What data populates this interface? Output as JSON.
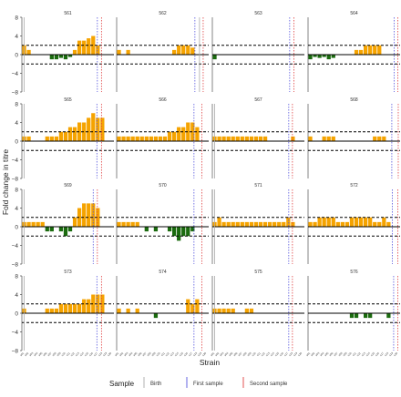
{
  "chart_data": {
    "type": "bar",
    "facet_layout": "4x4 grid",
    "xlabel": "Strain",
    "ylabel": "Fold change in titre",
    "ylim": [
      -8,
      8
    ],
    "yticks": [
      -8,
      -4,
      0,
      4,
      8
    ],
    "y_tick_labels": [
      "−8",
      "−4",
      "0",
      "4",
      "8"
    ],
    "reference_lines": {
      "solid": 0,
      "dashed": [
        -2,
        2
      ]
    },
    "categories": [
      "s01",
      "s02",
      "s03",
      "s04",
      "s05",
      "s06",
      "s07",
      "s08",
      "s09",
      "s10",
      "s11",
      "s12",
      "s13",
      "s14",
      "s15",
      "s16",
      "s17",
      "s18",
      "s19",
      "s20"
    ],
    "positive_color": "#F5A300",
    "negative_color": "#1B6B0F",
    "legend": {
      "title": "Sample",
      "placement": "bottom",
      "items": [
        {
          "label": "Birth",
          "color": "#AAAAAA"
        },
        {
          "label": "First sample",
          "color": "#5555DD"
        },
        {
          "label": "Second sample",
          "color": "#E04040"
        }
      ]
    },
    "panels": [
      {
        "id": "561",
        "values": [
          2,
          1,
          0,
          0,
          0,
          0,
          -1,
          -1,
          -0.7,
          -1,
          -0.5,
          1,
          3,
          3,
          3.5,
          4,
          2,
          0,
          0,
          0
        ],
        "birth_x": 0.5,
        "first_x": 16.4,
        "second_x": 17.3
      },
      {
        "id": "562",
        "values": [
          1,
          0,
          1,
          0,
          0,
          0,
          0,
          0,
          0,
          0,
          0,
          0,
          1,
          2,
          2,
          2,
          1.5,
          0,
          0,
          0
        ],
        "birth_x": 18,
        "first_x": 17,
        "second_x": 18.8
      },
      {
        "id": "563",
        "values": [
          -1,
          0,
          0,
          0,
          0,
          0,
          0,
          0,
          0,
          0,
          0,
          0,
          0,
          0,
          0,
          0,
          0,
          0,
          0,
          0
        ],
        "birth_x": null,
        "first_x": 16.8,
        "second_x": 17.7
      },
      {
        "id": "564",
        "values": [
          -1,
          -0.5,
          -0.7,
          -0.5,
          -1,
          -0.7,
          0,
          0,
          0,
          0,
          1,
          1,
          2,
          2,
          2,
          2,
          0,
          0,
          0,
          0
        ],
        "birth_x": null,
        "first_x": 18.7,
        "second_x": 19.5
      },
      {
        "id": "565",
        "values": [
          1,
          1,
          0,
          0,
          0,
          1,
          1,
          1,
          2,
          2,
          3,
          3,
          4,
          4,
          5,
          6,
          5,
          5,
          0,
          0
        ],
        "birth_x": 0.5,
        "first_x": 16.3,
        "second_x": 17.3
      },
      {
        "id": "566",
        "values": [
          1,
          1,
          1,
          1,
          1,
          1,
          1,
          1,
          1,
          1,
          1,
          2,
          2,
          3,
          3,
          4,
          4,
          3,
          0,
          0
        ],
        "birth_x": null,
        "first_x": 16.8,
        "second_x": 18.5
      },
      {
        "id": "567",
        "values": [
          1,
          1,
          1,
          1,
          1,
          1,
          1,
          1,
          1,
          1,
          1,
          1,
          0,
          0,
          0,
          0,
          0,
          1,
          0,
          0
        ],
        "birth_x": 0.5,
        "first_x": 16.6,
        "second_x": 17.4
      },
      {
        "id": "568",
        "values": [
          1,
          0,
          0,
          1,
          1,
          1,
          0,
          0,
          0,
          0,
          0,
          0,
          0,
          0,
          1,
          1,
          1,
          0,
          0,
          0
        ],
        "birth_x": null,
        "first_x": 18.2,
        "second_x": 19.6
      },
      {
        "id": "569",
        "values": [
          1,
          1,
          1,
          1,
          1,
          -1,
          -1,
          0,
          -1,
          -2,
          -1,
          2,
          4,
          5,
          5,
          5,
          4,
          0,
          0,
          0
        ],
        "birth_x": 0.5,
        "first_x": 15.5,
        "second_x": 16.4
      },
      {
        "id": "570",
        "values": [
          1,
          1,
          1,
          1,
          1,
          0,
          -1,
          0,
          -1,
          0,
          0,
          -1,
          -2,
          -3,
          -2,
          -2,
          -1,
          0,
          0,
          0
        ],
        "birth_x": null,
        "first_x": 16.8,
        "second_x": 18.5
      },
      {
        "id": "571",
        "values": [
          1,
          2,
          1,
          1,
          1,
          1,
          1,
          1,
          1,
          1,
          1,
          1,
          1,
          1,
          1,
          1,
          2,
          1,
          0,
          0
        ],
        "birth_x": 0.5,
        "first_x": 16.6,
        "second_x": 17.4
      },
      {
        "id": "572",
        "values": [
          1,
          1,
          2,
          2,
          2,
          2,
          1,
          1,
          1,
          2,
          2,
          2,
          2,
          2,
          1,
          1,
          2,
          1,
          0,
          0
        ],
        "birth_x": null,
        "first_x": 18.3,
        "second_x": 19.5
      },
      {
        "id": "573",
        "values": [
          1,
          0,
          0,
          0,
          0,
          1,
          1,
          1,
          2,
          2,
          2,
          2,
          2,
          3,
          3,
          4,
          4,
          4,
          0,
          0
        ],
        "birth_x": 0.5,
        "first_x": 16.3,
        "second_x": 17.3
      },
      {
        "id": "574",
        "values": [
          1,
          0,
          1,
          0,
          1,
          0,
          0,
          0,
          -1,
          0,
          0,
          0,
          0,
          0,
          0,
          3,
          2,
          3,
          0,
          0
        ],
        "birth_x": null,
        "first_x": 16.8,
        "second_x": 18.5
      },
      {
        "id": "575",
        "values": [
          1,
          1,
          1,
          1,
          1,
          0,
          0,
          1,
          1,
          0,
          0,
          0,
          0,
          0,
          0,
          0,
          0,
          0,
          0,
          0
        ],
        "birth_x": 0.5,
        "first_x": 16.6,
        "second_x": 17.4
      },
      {
        "id": "576",
        "values": [
          0,
          0,
          0,
          0,
          0,
          0,
          0,
          0,
          0,
          -1,
          -1,
          0,
          -1,
          -1,
          0,
          0,
          0,
          -1,
          0,
          0
        ],
        "birth_x": null,
        "first_x": 18.6,
        "second_x": 19.5
      }
    ]
  }
}
